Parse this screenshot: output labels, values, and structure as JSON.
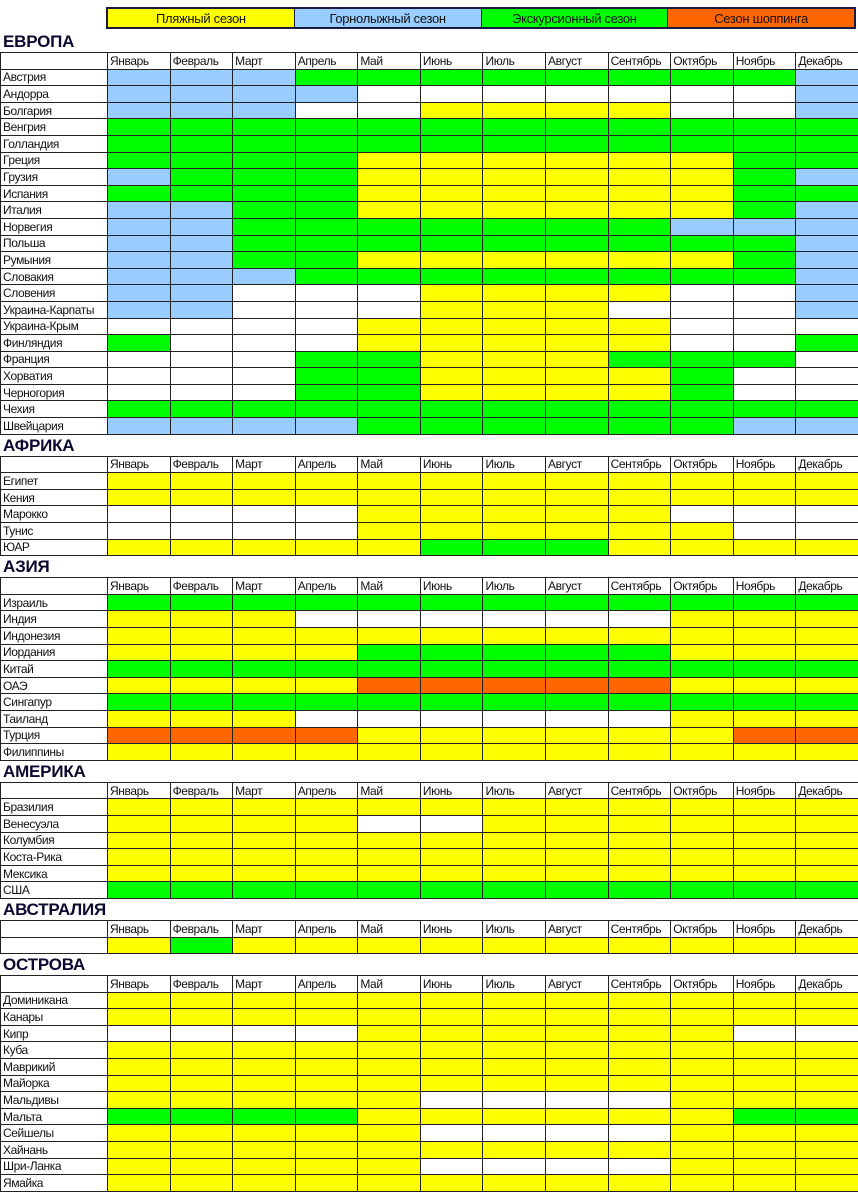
{
  "season_colors": {
    "Y": "#ffff00",
    "B": "#99ccff",
    "G": "#00ff00",
    "O": "#ff6600",
    "W": "#ffffff"
  },
  "legend": [
    {
      "code": "Y",
      "label": "Пляжный сезон"
    },
    {
      "code": "B",
      "label": "Горнолыжный сезон"
    },
    {
      "code": "G",
      "label": "Экскурсионный сезон"
    },
    {
      "code": "O",
      "label": "Сезон шоппинга"
    }
  ],
  "months": [
    "Январь",
    "Февраль",
    "Март",
    "Апрель",
    "Май",
    "Июнь",
    "Июль",
    "Август",
    "Сентябрь",
    "Октябрь",
    "Ноябрь",
    "Декабрь"
  ],
  "sections": [
    {
      "title": "ЕВРОПА",
      "rows": [
        {
          "name": "Австрия",
          "seasons": "BBBGGGGGGGGB"
        },
        {
          "name": "Андорра",
          "seasons": "BBBBWWWWWWWB"
        },
        {
          "name": "Болгария",
          "seasons": "BBBWWYYYYWWB"
        },
        {
          "name": "Венгрия",
          "seasons": "GGGGGGGGGGGG"
        },
        {
          "name": "Голландия",
          "seasons": "GGGGGGGGGGGG"
        },
        {
          "name": "Греция",
          "seasons": "GGGGYYYYYYGG"
        },
        {
          "name": "Грузия",
          "seasons": "BGGGYYYYYYGB"
        },
        {
          "name": "Испания",
          "seasons": "GGGGYYYYYYGG"
        },
        {
          "name": "Италия",
          "seasons": "BBGGYYYYYYGB"
        },
        {
          "name": "Норвегия",
          "seasons": "BBGGGGGGGBBB"
        },
        {
          "name": "Польша",
          "seasons": "BBGGGGGGGGGB"
        },
        {
          "name": "Румыния",
          "seasons": "BBGGYYYYYYGB"
        },
        {
          "name": "Словакия",
          "seasons": "BBBGGGGGGGGB"
        },
        {
          "name": "Словения",
          "seasons": "BBWWWYYYYWWB"
        },
        {
          "name": "Украина-Карпаты",
          "seasons": "BBWWWYYYWWWB"
        },
        {
          "name": "Украина-Крым",
          "seasons": "WWWWYYYYYWWW"
        },
        {
          "name": "Финляндия",
          "seasons": "GWWWYYYYYWWG"
        },
        {
          "name": "Франция",
          "seasons": "WWWGGYYYGGGW"
        },
        {
          "name": "Хорватия",
          "seasons": "WWWGGYYYYGWW"
        },
        {
          "name": "Черногория",
          "seasons": "WWWGGYYYYGWW"
        },
        {
          "name": "Чехия",
          "seasons": "GGGGGGGGGGGG"
        },
        {
          "name": "Швейцария",
          "seasons": "BBBBGGGGGGBB"
        }
      ]
    },
    {
      "title": "АФРИКА",
      "rows": [
        {
          "name": "Египет",
          "seasons": "YYYYYYYYYYYY"
        },
        {
          "name": "Кения",
          "seasons": "YYYYYYYYYYYY"
        },
        {
          "name": "Марокко",
          "seasons": "WWWWYYYYYWWW"
        },
        {
          "name": "Тунис",
          "seasons": "WWWWYYYYYYWW"
        },
        {
          "name": "ЮАР",
          "seasons": "YYYYYGGGYYYY"
        }
      ]
    },
    {
      "title": "АЗИЯ",
      "rows": [
        {
          "name": "Израиль",
          "seasons": "GGGGGGGGGGGG"
        },
        {
          "name": "Индия",
          "seasons": "YYYWWWWWWYYY"
        },
        {
          "name": "Индонезия",
          "seasons": "YYYYYYYYYYYY"
        },
        {
          "name": "Иордания",
          "seasons": "YYYYGGGGGYYY"
        },
        {
          "name": "Китай",
          "seasons": "GGGGGGGGGGGG"
        },
        {
          "name": "ОАЭ",
          "seasons": "YYYYOOOOOYYY"
        },
        {
          "name": "Сингапур",
          "seasons": "GGGGGGGGGGGG"
        },
        {
          "name": "Таиланд",
          "seasons": "YYYWWWWWWYYY"
        },
        {
          "name": "Турция",
          "seasons": "OOOOYYYYYYOO"
        },
        {
          "name": "Филиппины",
          "seasons": "YYYYYYYYYYYY"
        }
      ]
    },
    {
      "title": "АМЕРИКА",
      "rows": [
        {
          "name": "Бразилия",
          "seasons": "YYYYYYYYYYYY"
        },
        {
          "name": "Венесуэла",
          "seasons": "YYYYWWYYYYYY"
        },
        {
          "name": "Колумбия",
          "seasons": "YYYYYYYYYYYY"
        },
        {
          "name": "Коста-Рика",
          "seasons": "YYYYYYYYYYYY"
        },
        {
          "name": "Мексика",
          "seasons": "YYYYYYYYYYYY"
        },
        {
          "name": "США",
          "seasons": "GGGGGGGGGGGG"
        }
      ]
    },
    {
      "title": "АВСТРАЛИЯ",
      "rows": [
        {
          "name": "",
          "seasons": "YGYYYYYYYYYY"
        }
      ]
    },
    {
      "title": "ОСТРОВА",
      "rows": [
        {
          "name": "Доминикана",
          "seasons": "YYYYYYYYYYYY"
        },
        {
          "name": "Канары",
          "seasons": "YYYYYYYYYYYY"
        },
        {
          "name": "Кипр",
          "seasons": "WWWWYYYYYYWW"
        },
        {
          "name": "Куба",
          "seasons": "YYYYYYYYYYYY"
        },
        {
          "name": "Маврикий",
          "seasons": "YYYYYYYYYYYY"
        },
        {
          "name": "Майорка",
          "seasons": "YYYYYYYYYYYY"
        },
        {
          "name": "Мальдивы",
          "seasons": "YYYYYWWWWYYY"
        },
        {
          "name": "Мальта",
          "seasons": "GGGGYYYYYYGG"
        },
        {
          "name": "Сейшелы",
          "seasons": "YYYYYWWWWYYY"
        },
        {
          "name": "Хайнань",
          "seasons": "YYYYYYYYYYYY"
        },
        {
          "name": "Шри-Ланка",
          "seasons": "YYYYYWWWWYYY"
        },
        {
          "name": "Ямайка",
          "seasons": "YYYYYYYYYYYY"
        }
      ]
    }
  ]
}
